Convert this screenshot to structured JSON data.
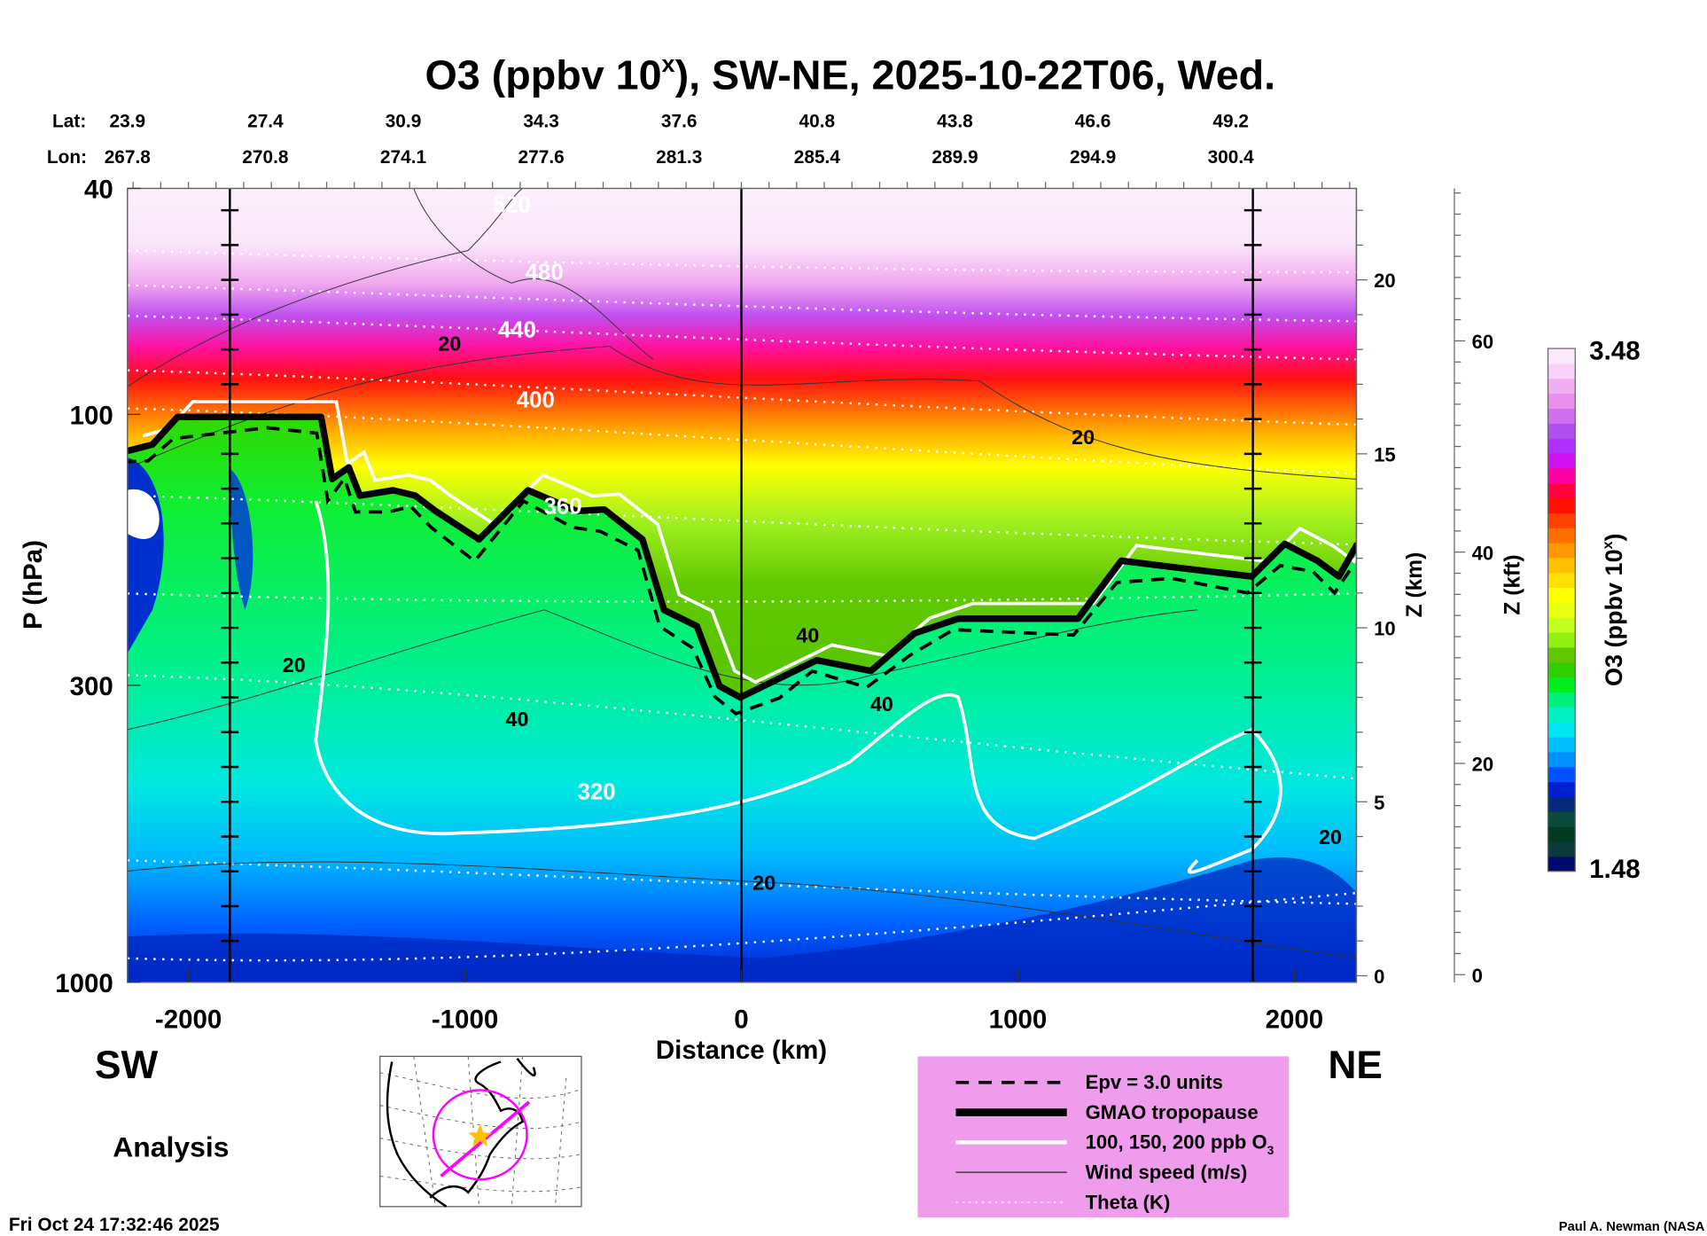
{
  "title": {
    "pre": "O3 (ppbv 10",
    "sup": "x",
    "post": "), SW-NE, 2025-10-22T06, Wed."
  },
  "lat_label": "Lat:",
  "lon_label": "Lon:",
  "lats": [
    "23.9",
    "27.4",
    "30.9",
    "34.3",
    "37.6",
    "40.8",
    "43.8",
    "46.6",
    "49.2"
  ],
  "lons": [
    "267.8",
    "270.8",
    "274.1",
    "277.6",
    "281.3",
    "285.4",
    "289.9",
    "294.9",
    "300.4"
  ],
  "direction_left": "SW",
  "direction_right": "NE",
  "analysis_label": "Analysis",
  "footer_date": "Fri Oct 24 17:32:46 2025",
  "credit": "Paul A. Newman (NASA",
  "legend": {
    "bg": "#f09cec",
    "items": [
      {
        "label": "Epv = 3.0 units",
        "style": "dashed"
      },
      {
        "label": "GMAO tropopause",
        "style": "thick"
      },
      {
        "label": "100, 150, 200 ppb O",
        "sub": "3",
        "style": "white"
      },
      {
        "label": "Wind speed (m/s)",
        "style": "thin"
      },
      {
        "label": "Theta (K)",
        "style": "dotted"
      }
    ]
  },
  "chart_data": {
    "type": "heatmap",
    "title": "O3 (ppbv 10^x), SW-NE, 2025-10-22T06, Wed.",
    "xlabel": "Distance (km)",
    "ylabel": "P (hPa)",
    "y2label": "Z (km)",
    "y3label": "Z (kft)",
    "xlim": [
      -2220,
      2230
    ],
    "ylim": [
      1000,
      40
    ],
    "xticks": [
      -2000,
      -1000,
      0,
      1000,
      2000
    ],
    "xtick_labels": [
      "-2000",
      "-1000",
      "0",
      "1000",
      "2000"
    ],
    "yticks": [
      40,
      100,
      300,
      1000
    ],
    "ytick_labels": [
      "40",
      "100",
      "300",
      "1000"
    ],
    "zkm_ticks": [
      "0",
      "5",
      "10",
      "15",
      "20"
    ],
    "zkft_ticks": [
      "0",
      "20",
      "40",
      "60"
    ],
    "vertical_markers_km": [
      -1850,
      0,
      1850
    ],
    "colorbar": {
      "label_pre": "O3 (ppbv 10",
      "label_sup": "x",
      "label_post": ")",
      "min": "1.48",
      "max": "3.48",
      "colors": [
        "#000a6e",
        "#0a3a3a",
        "#003a20",
        "#0a4a3a",
        "#062a7a",
        "#0020d0",
        "#0050ff",
        "#0090ff",
        "#00c0ff",
        "#00e6f0",
        "#00f0c0",
        "#00f080",
        "#00ee20",
        "#30d000",
        "#60c800",
        "#90f010",
        "#c0ff20",
        "#e8ff10",
        "#ffff00",
        "#ffe000",
        "#ffc000",
        "#ff9800",
        "#ff7000",
        "#ff4000",
        "#ff1000",
        "#ff0040",
        "#ff00a0",
        "#d010f0",
        "#b030ff",
        "#b050f0",
        "#d070ee",
        "#e890ec",
        "#f0b0f0",
        "#f8d0f8",
        "#fce8fc"
      ]
    },
    "tropopause": [
      [
        -2220,
        116
      ],
      [
        -2130,
        113
      ],
      [
        -2039,
        101
      ],
      [
        -1700,
        101
      ],
      [
        -1520,
        101
      ],
      [
        -1480,
        130
      ],
      [
        -1420,
        124
      ],
      [
        -1380,
        139
      ],
      [
        -1260,
        136
      ],
      [
        -1180,
        139
      ],
      [
        -1106,
        148
      ],
      [
        -949,
        166
      ],
      [
        -772,
        136
      ],
      [
        -595,
        148
      ],
      [
        -496,
        147
      ],
      [
        -358,
        166
      ],
      [
        -280,
        221
      ],
      [
        -161,
        236
      ],
      [
        -79,
        301
      ],
      [
        -4,
        315
      ],
      [
        154,
        289
      ],
      [
        272,
        271
      ],
      [
        469,
        283
      ],
      [
        626,
        243
      ],
      [
        783,
        229
      ],
      [
        1217,
        229
      ],
      [
        1374,
        181
      ],
      [
        1571,
        186
      ],
      [
        1846,
        193
      ],
      [
        1965,
        169
      ],
      [
        2083,
        181
      ],
      [
        2161,
        193
      ],
      [
        2228,
        169
      ]
    ],
    "theta_labels": [
      "520",
      "480",
      "440",
      "400",
      "360",
      "320"
    ],
    "wind_labels": [
      "20",
      "20",
      "20",
      "40",
      "40",
      "40",
      "20",
      "20"
    ]
  }
}
